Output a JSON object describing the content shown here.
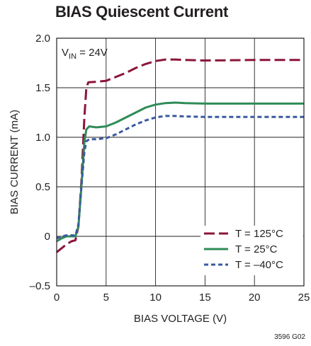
{
  "chart_data": {
    "type": "line",
    "title": "BIAS Quiescent Current",
    "xlabel": "BIAS VOLTAGE (V)",
    "ylabel": "BIAS CURRENT (mA)",
    "xlim": [
      0,
      25
    ],
    "ylim": [
      -0.5,
      2.0
    ],
    "x_ticks": [
      0,
      5,
      10,
      15,
      20,
      25
    ],
    "x_tick_labels": [
      "0",
      "5",
      "10",
      "15",
      "20",
      "25"
    ],
    "y_ticks": [
      -0.5,
      0,
      0.5,
      1.0,
      1.5,
      2.0
    ],
    "y_tick_labels": [
      "–0.5",
      "0",
      "0.5",
      "1.0",
      "1.5",
      "2.0"
    ],
    "grid": true,
    "legend_position": "bottom-right",
    "annotation": {
      "prefix": "V",
      "subscript": "IN",
      "suffix": " = 24V"
    },
    "figure_id": "3596 G02",
    "series": [
      {
        "name": "T = 125°C",
        "color": "#8b1538",
        "dash": "long-dash",
        "points": [
          [
            0,
            -0.16
          ],
          [
            0.5,
            -0.12
          ],
          [
            1,
            -0.08
          ],
          [
            1.5,
            -0.05
          ],
          [
            1.9,
            -0.04
          ],
          [
            2.2,
            0.1
          ],
          [
            2.5,
            0.55
          ],
          [
            2.8,
            1.2
          ],
          [
            3.0,
            1.5
          ],
          [
            3.2,
            1.555
          ],
          [
            4,
            1.56
          ],
          [
            5,
            1.57
          ],
          [
            6,
            1.61
          ],
          [
            7,
            1.65
          ],
          [
            8,
            1.7
          ],
          [
            9,
            1.74
          ],
          [
            10,
            1.77
          ],
          [
            11,
            1.785
          ],
          [
            12,
            1.785
          ],
          [
            13,
            1.78
          ],
          [
            15,
            1.775
          ],
          [
            20,
            1.78
          ],
          [
            25,
            1.78
          ]
        ]
      },
      {
        "name": "T = 25°C",
        "color": "#2e8b57",
        "dash": "solid",
        "points": [
          [
            0,
            -0.05
          ],
          [
            0.5,
            -0.02
          ],
          [
            1,
            0
          ],
          [
            1.5,
            0.0
          ],
          [
            1.9,
            0.0
          ],
          [
            2.2,
            0.1
          ],
          [
            2.5,
            0.5
          ],
          [
            2.8,
            0.95
          ],
          [
            3.0,
            1.08
          ],
          [
            3.3,
            1.11
          ],
          [
            4,
            1.1
          ],
          [
            5,
            1.11
          ],
          [
            6,
            1.15
          ],
          [
            7,
            1.2
          ],
          [
            8,
            1.25
          ],
          [
            9,
            1.3
          ],
          [
            10,
            1.33
          ],
          [
            11,
            1.345
          ],
          [
            12,
            1.35
          ],
          [
            13,
            1.345
          ],
          [
            15,
            1.34
          ],
          [
            20,
            1.34
          ],
          [
            25,
            1.34
          ]
        ]
      },
      {
        "name": "T = –40°C",
        "color": "#3a5ba0",
        "dash": "short-dash",
        "points": [
          [
            0,
            -0.02
          ],
          [
            0.5,
            0.0
          ],
          [
            1,
            0.01
          ],
          [
            1.5,
            0.01
          ],
          [
            1.9,
            0.01
          ],
          [
            2.2,
            0.12
          ],
          [
            2.5,
            0.5
          ],
          [
            2.8,
            0.85
          ],
          [
            3.0,
            0.96
          ],
          [
            3.3,
            0.98
          ],
          [
            4,
            0.98
          ],
          [
            5,
            0.99
          ],
          [
            6,
            1.03
          ],
          [
            7,
            1.08
          ],
          [
            8,
            1.13
          ],
          [
            9,
            1.17
          ],
          [
            10,
            1.2
          ],
          [
            11,
            1.215
          ],
          [
            12,
            1.215
          ],
          [
            13,
            1.21
          ],
          [
            15,
            1.205
          ],
          [
            20,
            1.205
          ],
          [
            25,
            1.205
          ]
        ]
      }
    ]
  }
}
